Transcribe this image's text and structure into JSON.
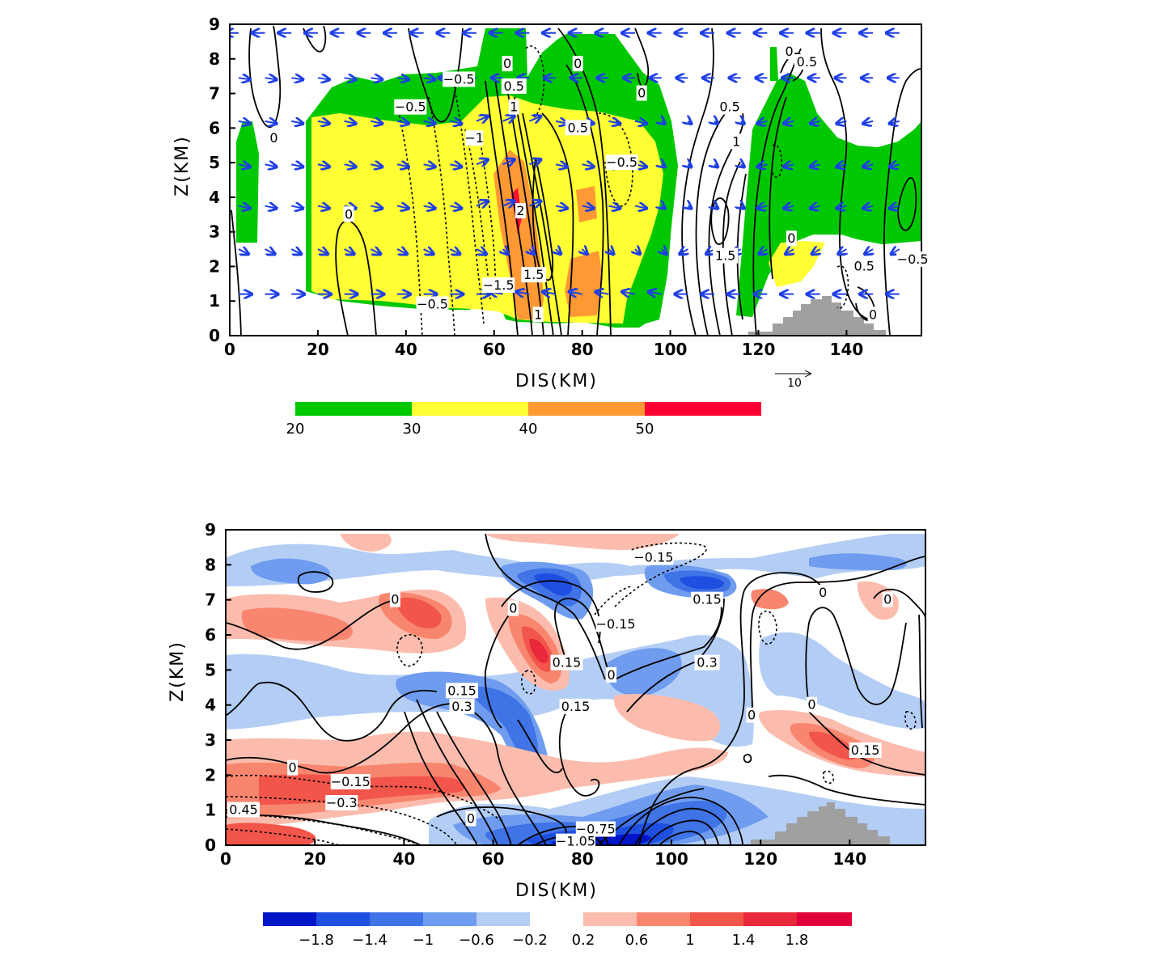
{
  "colors": {
    "reflectivity": [
      "#00c800",
      "#ffff33",
      "#ff9933",
      "#ff0033"
    ],
    "diverging_neg": [
      "#0014c8",
      "#1f4fe0",
      "#3f73e6",
      "#6f9cee",
      "#b3cdf5"
    ],
    "diverging_pos": [
      "#fbbcad",
      "#f8866e",
      "#f2554a",
      "#e8283b",
      "#e0003a"
    ],
    "wind_vector": "#1f3fe6",
    "terrain": "#a0a0a0",
    "contour": "#000000"
  },
  "chart_data": [
    {
      "type": "cross-section",
      "panel": "top",
      "xlabel": "DIS(KM)",
      "ylabel": "Z(KM)",
      "xlim": [
        0,
        157
      ],
      "ylim": [
        0,
        9
      ],
      "xticks": [
        "0",
        "20",
        "40",
        "60",
        "80",
        "100",
        "120",
        "140"
      ],
      "yticks": [
        "0",
        "1",
        "2",
        "3",
        "4",
        "5",
        "6",
        "7",
        "8",
        "9"
      ],
      "vector_reference": {
        "label": "10",
        "value": 10
      },
      "colorbar": {
        "levels": [
          "20",
          "30",
          "40",
          "50"
        ],
        "thresholds": [
          20,
          30,
          40,
          50
        ]
      },
      "contour_labels": [
        {
          "text": "0",
          "x": 63,
          "y": 7.85
        },
        {
          "text": "0.5",
          "x": 64.5,
          "y": 7.2
        },
        {
          "text": "1",
          "x": 64.5,
          "y": 6.6
        },
        {
          "text": "0",
          "x": 79,
          "y": 7.85
        },
        {
          "text": "0",
          "x": 93.5,
          "y": 7.0
        },
        {
          "text": "0",
          "x": 127,
          "y": 8.2
        },
        {
          "text": "0.5",
          "x": 131,
          "y": 7.9
        },
        {
          "text": "-0.5",
          "x": 52,
          "y": 7.4
        },
        {
          "text": "-0.5",
          "x": 41,
          "y": 6.6
        },
        {
          "text": "0.5",
          "x": 79,
          "y": 6.0
        },
        {
          "text": "0.5",
          "x": 113.5,
          "y": 6.6
        },
        {
          "text": "0",
          "x": 10,
          "y": 5.7
        },
        {
          "text": "-1",
          "x": 55.5,
          "y": 5.7
        },
        {
          "text": "1",
          "x": 115,
          "y": 5.6
        },
        {
          "text": "-0.5",
          "x": 89,
          "y": 5.0
        },
        {
          "text": "0",
          "x": 27,
          "y": 3.5
        },
        {
          "text": "2",
          "x": 66,
          "y": 3.6
        },
        {
          "text": "0",
          "x": 127.5,
          "y": 2.8
        },
        {
          "text": "1.5",
          "x": 112.5,
          "y": 2.3
        },
        {
          "text": "0.5",
          "x": 144,
          "y": 2.0
        },
        {
          "text": "-0.5",
          "x": 155,
          "y": 2.2
        },
        {
          "text": "-1.5",
          "x": 61,
          "y": 1.45
        },
        {
          "text": "1.5",
          "x": 69,
          "y": 1.75
        },
        {
          "text": "-0.5",
          "x": 46,
          "y": 0.9
        },
        {
          "text": "1",
          "x": 70,
          "y": 0.6
        },
        {
          "text": "0",
          "x": 146,
          "y": 0.6
        }
      ]
    },
    {
      "type": "cross-section",
      "panel": "bottom",
      "xlabel": "DIS(KM)",
      "ylabel": "Z(KM)",
      "xlim": [
        0,
        157
      ],
      "ylim": [
        0,
        9
      ],
      "xticks": [
        "0",
        "20",
        "40",
        "60",
        "80",
        "100",
        "120",
        "140"
      ],
      "yticks": [
        "0",
        "1",
        "2",
        "3",
        "4",
        "5",
        "6",
        "7",
        "8",
        "9"
      ],
      "colorbar": {
        "labels": [
          "−1.8",
          "−1.4",
          "−1",
          "−0.6",
          "−0.2",
          "0.2",
          "0.6",
          "1",
          "1.4",
          "1.8"
        ],
        "values": [
          -1.8,
          -1.4,
          -1.0,
          -0.6,
          -0.2,
          0.2,
          0.6,
          1.0,
          1.4,
          1.8
        ]
      },
      "contour_labels": [
        {
          "text": "-0.15",
          "x": 96,
          "y": 8.2
        },
        {
          "text": "0",
          "x": 38,
          "y": 7.0
        },
        {
          "text": "0.15",
          "x": 108,
          "y": 7.0
        },
        {
          "text": "0",
          "x": 134,
          "y": 7.2
        },
        {
          "text": "0",
          "x": 148.5,
          "y": 7.0
        },
        {
          "text": "0",
          "x": 64.5,
          "y": 6.75
        },
        {
          "text": "-0.15",
          "x": 87.5,
          "y": 6.3
        },
        {
          "text": "0.15",
          "x": 76.5,
          "y": 5.2
        },
        {
          "text": "0.3",
          "x": 108,
          "y": 5.2
        },
        {
          "text": "0",
          "x": 86.5,
          "y": 4.85
        },
        {
          "text": "0.15",
          "x": 53,
          "y": 4.4
        },
        {
          "text": "0.3",
          "x": 53,
          "y": 3.95
        },
        {
          "text": "0.15",
          "x": 78.5,
          "y": 3.95
        },
        {
          "text": "0",
          "x": 118,
          "y": 3.7
        },
        {
          "text": "0",
          "x": 131.5,
          "y": 4.0
        },
        {
          "text": "0.15",
          "x": 143.5,
          "y": 2.7
        },
        {
          "text": "0",
          "x": 15,
          "y": 2.2
        },
        {
          "text": "-0.15",
          "x": 28,
          "y": 1.8
        },
        {
          "text": "-0.3",
          "x": 26,
          "y": 1.2
        },
        {
          "text": "0.45",
          "x": 4,
          "y": 1.0
        },
        {
          "text": "0",
          "x": 55,
          "y": 0.75
        },
        {
          "text": "-0.75",
          "x": 83,
          "y": 0.45
        },
        {
          "text": "-1.05",
          "x": 78.5,
          "y": 0.1
        }
      ]
    }
  ]
}
